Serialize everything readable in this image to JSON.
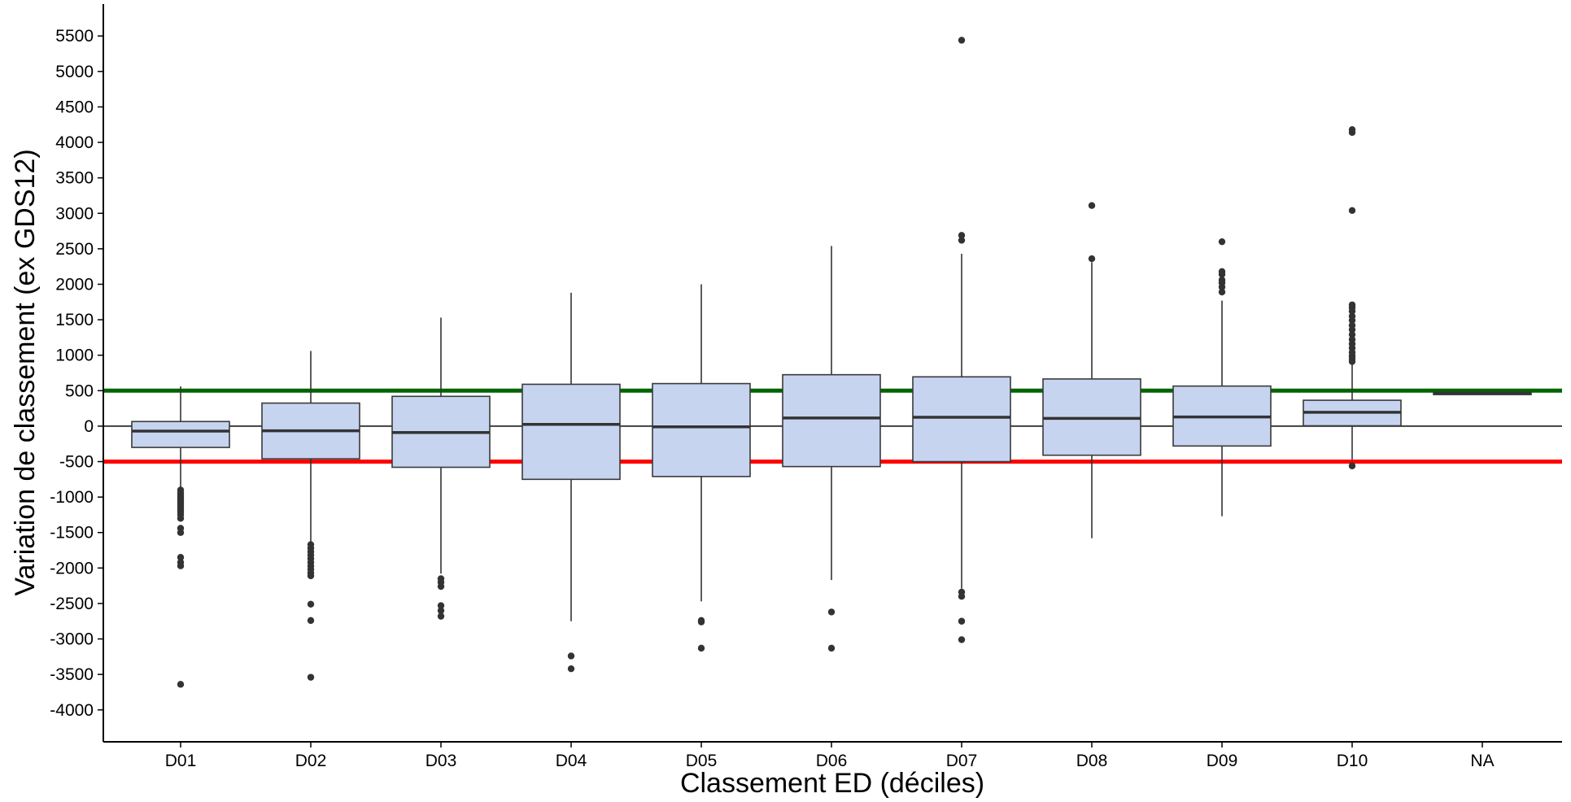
{
  "chart_data": {
    "type": "box",
    "title": "",
    "xlabel": "Classement ED (déciles)",
    "ylabel": "Variation de classement (ex GDS12)",
    "categories": [
      "D01",
      "D02",
      "D03",
      "D04",
      "D05",
      "D06",
      "D07",
      "D08",
      "D09",
      "D10",
      "NA"
    ],
    "ylim": [
      -4450,
      5950
    ],
    "yticks": [
      -4000,
      -3500,
      -3000,
      -2500,
      -2000,
      -1500,
      -1000,
      -500,
      0,
      500,
      1000,
      1500,
      2000,
      2500,
      3000,
      3500,
      4000,
      4500,
      5000,
      5500
    ],
    "grid": false,
    "box_fill": "#c6d4f0",
    "box_stroke": "#3a3a3a",
    "reference_lines": [
      {
        "y": 500,
        "color": "#006400"
      },
      {
        "y": 0,
        "color": "#404040"
      },
      {
        "y": -500,
        "color": "#ff0000"
      }
    ],
    "boxes": [
      {
        "category": "D01",
        "q1": -300,
        "median": -70,
        "q3": 65,
        "whisker_low": -870,
        "whisker_high": 560,
        "outliers": [
          -900,
          -940,
          -970,
          -1000,
          -1030,
          -1060,
          -1090,
          -1120,
          -1150,
          -1180,
          -1210,
          -1250,
          -1300,
          -1440,
          -1500,
          -1850,
          -1920,
          -1970,
          -3640
        ]
      },
      {
        "category": "D02",
        "q1": -460,
        "median": -65,
        "q3": 325,
        "whisker_low": -1640,
        "whisker_high": 1060,
        "outliers": [
          -1670,
          -1720,
          -1770,
          -1820,
          -1870,
          -1920,
          -1970,
          -2020,
          -2070,
          -2110,
          -2510,
          -2740,
          -3540
        ]
      },
      {
        "category": "D03",
        "q1": -580,
        "median": -90,
        "q3": 420,
        "whisker_low": -2080,
        "whisker_high": 1530,
        "outliers": [
          -2150,
          -2200,
          -2260,
          -2530,
          -2600,
          -2680
        ]
      },
      {
        "category": "D04",
        "q1": -750,
        "median": 25,
        "q3": 590,
        "whisker_low": -2750,
        "whisker_high": 1880,
        "outliers": [
          -3240,
          -3420
        ]
      },
      {
        "category": "D05",
        "q1": -710,
        "median": -10,
        "q3": 600,
        "whisker_low": -2470,
        "whisker_high": 2000,
        "outliers": [
          -2740,
          -2760,
          -3130
        ]
      },
      {
        "category": "D06",
        "q1": -570,
        "median": 115,
        "q3": 725,
        "whisker_low": -2170,
        "whisker_high": 2540,
        "outliers": [
          -2620,
          -3130
        ]
      },
      {
        "category": "D07",
        "q1": -500,
        "median": 125,
        "q3": 695,
        "whisker_low": -2290,
        "whisker_high": 2430,
        "outliers": [
          2620,
          2690,
          5440,
          -2340,
          -2400,
          -2750,
          -3010
        ]
      },
      {
        "category": "D08",
        "q1": -410,
        "median": 110,
        "q3": 665,
        "whisker_low": -1580,
        "whisker_high": 2310,
        "outliers": [
          2360,
          3110
        ]
      },
      {
        "category": "D09",
        "q1": -280,
        "median": 130,
        "q3": 565,
        "whisker_low": -1270,
        "whisker_high": 1770,
        "outliers": [
          1890,
          1960,
          2020,
          2060,
          2140,
          2180,
          2600
        ]
      },
      {
        "category": "D10",
        "q1": 5,
        "median": 195,
        "q3": 365,
        "whisker_low": -470,
        "whisker_high": 880,
        "outliers": [
          910,
          950,
          990,
          1040,
          1100,
          1160,
          1220,
          1290,
          1360,
          1420,
          1490,
          1550,
          1620,
          1670,
          1710,
          3040,
          4140,
          4180,
          -560
        ]
      },
      {
        "category": "NA",
        "q1": 445,
        "median": 460,
        "q3": 475,
        "whisker_low": 445,
        "whisker_high": 475,
        "outliers": []
      }
    ]
  }
}
